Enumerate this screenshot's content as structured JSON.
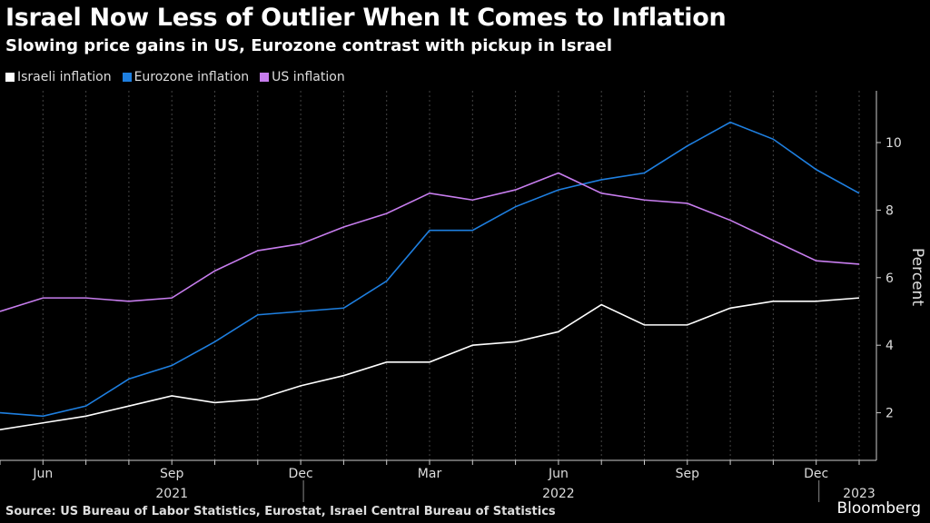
{
  "header": {
    "title": "Israel Now Less of Outlier When It Comes to Inflation",
    "subtitle": "Slowing price gains in US, Eurozone contrast with pickup in Israel"
  },
  "footer": {
    "source": "Source: US Bureau of Labor Statistics, Eurostat, Israel Central Bureau of Statistics",
    "brand": "Bloomberg"
  },
  "chart_data": {
    "type": "line",
    "title": "Israel Now Less of Outlier When It Comes to Inflation",
    "subtitle": "Slowing price gains in US, Eurozone contrast with pickup in Israel",
    "ylabel": "Percent",
    "ylim": [
      0.8,
      11.5
    ],
    "yticks": [
      2,
      4,
      6,
      8,
      10
    ],
    "x": [
      "2021-05",
      "2021-06",
      "2021-07",
      "2021-08",
      "2021-09",
      "2021-10",
      "2021-11",
      "2021-12",
      "2022-01",
      "2022-02",
      "2022-03",
      "2022-04",
      "2022-05",
      "2022-06",
      "2022-07",
      "2022-08",
      "2022-09",
      "2022-10",
      "2022-11",
      "2022-12",
      "2023-01"
    ],
    "xtick_labels": [
      {
        "i": 1,
        "label": "Jun"
      },
      {
        "i": 4,
        "label": "Sep"
      },
      {
        "i": 7,
        "label": "Dec"
      },
      {
        "i": 10,
        "label": "Mar"
      },
      {
        "i": 13,
        "label": "Jun"
      },
      {
        "i": 16,
        "label": "Sep"
      },
      {
        "i": 19,
        "label": "Dec"
      }
    ],
    "year_labels": [
      {
        "i": 4,
        "label": "2021"
      },
      {
        "i": 13,
        "label": "2022"
      },
      {
        "i": 20,
        "label": "2023"
      }
    ],
    "grid": "vertical-dashed",
    "legend": "top-left",
    "y_axis_side": "right",
    "series": [
      {
        "name": "Israeli inflation",
        "color": "#ffffff",
        "values": [
          1.5,
          1.7,
          1.9,
          2.2,
          2.5,
          2.3,
          2.4,
          2.8,
          3.1,
          3.5,
          3.5,
          4.0,
          4.1,
          4.4,
          5.2,
          4.6,
          4.6,
          5.1,
          5.3,
          5.3,
          5.4
        ]
      },
      {
        "name": "Eurozone inflation",
        "color": "#1e7fe0",
        "values": [
          2.0,
          1.9,
          2.2,
          3.0,
          3.4,
          4.1,
          4.9,
          5.0,
          5.1,
          5.9,
          7.4,
          7.4,
          8.1,
          8.6,
          8.9,
          9.1,
          9.9,
          10.6,
          10.1,
          9.2,
          8.5
        ]
      },
      {
        "name": "US inflation",
        "color": "#c77dee",
        "values": [
          5.0,
          5.4,
          5.4,
          5.3,
          5.4,
          6.2,
          6.8,
          7.0,
          7.5,
          7.9,
          8.5,
          8.3,
          8.6,
          9.1,
          8.5,
          8.3,
          8.2,
          7.7,
          7.1,
          6.5,
          6.4
        ]
      }
    ]
  }
}
